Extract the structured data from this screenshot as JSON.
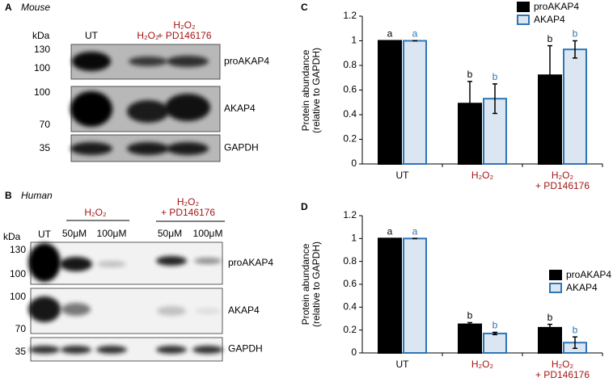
{
  "blots": [
    {
      "panel": "A",
      "species": "Mouse",
      "unit": "kDa",
      "markers": [
        "130",
        "100",
        "100",
        "70",
        "35"
      ],
      "lanes": [
        "UT",
        "H₂O₂",
        "H₂O₂\n+ PD146176"
      ],
      "bands": [
        "proAKAP4",
        "AKAP4",
        "GAPDH"
      ]
    },
    {
      "panel": "B",
      "species": "Human",
      "unit": "kDa",
      "markers": [
        "130",
        "100",
        "100",
        "70",
        "35"
      ],
      "lanes": [
        "UT",
        "H₂O₂",
        "H₂O₂\n+ PD146176"
      ],
      "doses": [
        "50μM",
        "100μM",
        "50μM",
        "100μM"
      ],
      "bands": [
        "proAKAP4",
        "AKAP4",
        "GAPDH"
      ]
    }
  ],
  "chart_data": [
    {
      "type": "bar",
      "panel": "C",
      "y_label": "Protein abundance\n(relative to GAPDH)",
      "categories": [
        "UT",
        "H₂O₂",
        "H₂O₂\n+ PD146176"
      ],
      "category_colors": [
        "#000000",
        "#a31515",
        "#a31515"
      ],
      "ylim": [
        0,
        1.2
      ],
      "yticks": [
        0,
        0.2,
        0.4,
        0.6,
        0.8,
        1,
        1.2
      ],
      "legend": "upper right",
      "series": [
        {
          "name": "proAKAP4",
          "color": "#000000",
          "edge_color": "#000000",
          "values": [
            1,
            0.49,
            0.72
          ],
          "errors": [
            0,
            0.18,
            0.24
          ],
          "letters": [
            "a",
            "b",
            "b"
          ],
          "letter_color": "#000000"
        },
        {
          "name": "AKAP4",
          "color": "#dce6f2",
          "edge_color": "#2e75b6",
          "values": [
            1,
            0.53,
            0.93
          ],
          "errors": [
            0,
            0.12,
            0.07
          ],
          "letters": [
            "a",
            "b",
            "b"
          ],
          "letter_color": "#2e75b6"
        }
      ]
    },
    {
      "type": "bar",
      "panel": "D",
      "y_label": "Protein abundance\n(relative to GAPDH)",
      "categories": [
        "UT",
        "H₂O₂",
        "H₂O₂\n+ PD146176"
      ],
      "category_colors": [
        "#000000",
        "#a31515",
        "#a31515"
      ],
      "ylim": [
        0,
        1.2
      ],
      "yticks": [
        0,
        0.2,
        0.4,
        0.6,
        0.8,
        1,
        1.2
      ],
      "legend": "center right",
      "series": [
        {
          "name": "proAKAP4",
          "color": "#000000",
          "edge_color": "#000000",
          "values": [
            1,
            0.25,
            0.22
          ],
          "errors": [
            0,
            0.015,
            0.03
          ],
          "letters": [
            "a",
            "b",
            "b"
          ],
          "letter_color": "#000000"
        },
        {
          "name": "AKAP4",
          "color": "#dce6f2",
          "edge_color": "#2e75b6",
          "values": [
            1,
            0.17,
            0.09
          ],
          "errors": [
            0,
            0.01,
            0.05
          ],
          "letters": [
            "a",
            "b",
            "b"
          ],
          "letter_color": "#2e75b6"
        }
      ]
    }
  ]
}
